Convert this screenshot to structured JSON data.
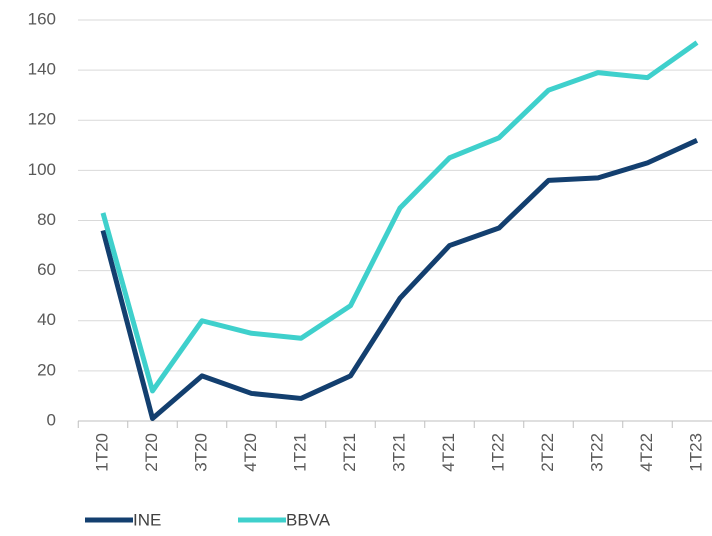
{
  "chart_data": {
    "type": "line",
    "categories": [
      "1T20",
      "2T20",
      "3T20",
      "4T20",
      "1T21",
      "2T21",
      "3T21",
      "4T21",
      "1T22",
      "2T22",
      "3T22",
      "4T22",
      "1T23"
    ],
    "series": [
      {
        "name": "INE",
        "color": "#133f6f",
        "values": [
          76,
          1,
          18,
          11,
          9,
          18,
          49,
          70,
          77,
          96,
          97,
          103,
          112
        ]
      },
      {
        "name": "BBVA",
        "color": "#3fd0cc",
        "values": [
          83,
          12,
          40,
          35,
          33,
          46,
          85,
          105,
          113,
          132,
          139,
          137,
          151
        ]
      }
    ],
    "ylim": [
      0,
      160
    ],
    "yticks": [
      0,
      20,
      40,
      60,
      80,
      100,
      120,
      140,
      160
    ],
    "grid": true,
    "legend": "bottom"
  }
}
